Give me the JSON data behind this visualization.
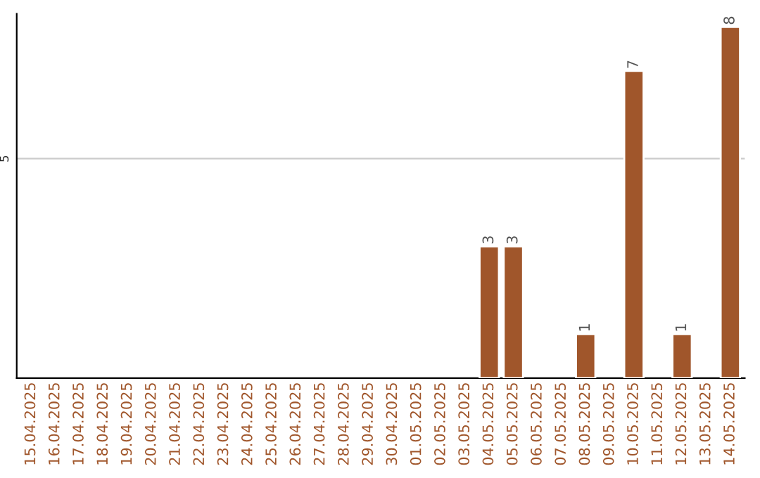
{
  "chart_data": {
    "type": "bar",
    "categories": [
      "15.04.2025",
      "16.04.2025",
      "17.04.2025",
      "18.04.2025",
      "19.04.2025",
      "20.04.2025",
      "21.04.2025",
      "22.04.2025",
      "23.04.2025",
      "24.04.2025",
      "25.04.2025",
      "26.04.2025",
      "27.04.2025",
      "28.04.2025",
      "29.04.2025",
      "30.04.2025",
      "01.05.2025",
      "02.05.2025",
      "03.05.2025",
      "04.05.2025",
      "05.05.2025",
      "06.05.2025",
      "07.05.2025",
      "08.05.2025",
      "09.05.2025",
      "10.05.2025",
      "11.05.2025",
      "12.05.2025",
      "13.05.2025",
      "14.05.2025"
    ],
    "values": [
      null,
      null,
      null,
      null,
      null,
      null,
      null,
      null,
      null,
      null,
      null,
      null,
      null,
      null,
      null,
      null,
      null,
      null,
      null,
      3,
      3,
      null,
      null,
      1,
      null,
      7,
      null,
      1,
      null,
      8
    ],
    "value_labels": [
      null,
      null,
      null,
      null,
      null,
      null,
      null,
      null,
      null,
      null,
      null,
      null,
      null,
      null,
      null,
      null,
      null,
      null,
      null,
      "3",
      "3",
      null,
      null,
      "1",
      null,
      "7",
      null,
      "1",
      null,
      "8"
    ],
    "color": "#a0562b",
    "ylim": [
      0,
      8.3
    ],
    "ref_lines": [
      {
        "axis": "y",
        "value": 5,
        "label": "5",
        "color": "#cccccc"
      }
    ]
  }
}
